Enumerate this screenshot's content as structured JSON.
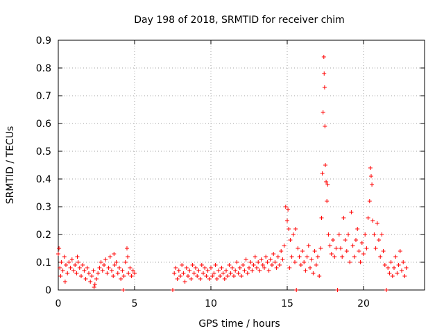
{
  "chart_data": {
    "type": "scatter",
    "title": "Day 198 of 2018, SRMTID for receiver chim",
    "xlabel": "GPS time / hours",
    "ylabel": "SRMTID / TECUs",
    "xlim": [
      0,
      24
    ],
    "ylim": [
      0,
      0.9
    ],
    "x_ticks": [
      0,
      5,
      10,
      15,
      20
    ],
    "x_tick_labels": [
      "0",
      "5",
      "10",
      "15",
      "20"
    ],
    "y_ticks": [
      0,
      0.1,
      0.2,
      0.3,
      0.4,
      0.5,
      0.6,
      0.7,
      0.8,
      0.9
    ],
    "y_tick_labels": [
      "0",
      "0.1",
      "0.2",
      "0.3",
      "0.4",
      "0.5",
      "0.6",
      "0.7",
      "0.8",
      "0.9"
    ],
    "grid": true,
    "marker": "+",
    "series_color": "#ff0000",
    "series": [
      {
        "name": "SRMTID",
        "points": [
          [
            0.0,
            0.13
          ],
          [
            0.1,
            0.08
          ],
          [
            0.2,
            0.1
          ],
          [
            0.3,
            0.07
          ],
          [
            0.4,
            0.12
          ],
          [
            0.5,
            0.09
          ],
          [
            0.6,
            0.06
          ],
          [
            0.7,
            0.1
          ],
          [
            0.8,
            0.08
          ],
          [
            0.9,
            0.11
          ],
          [
            1.0,
            0.07
          ],
          [
            1.1,
            0.09
          ],
          [
            1.2,
            0.06
          ],
          [
            1.3,
            0.1
          ],
          [
            1.4,
            0.08
          ],
          [
            1.5,
            0.05
          ],
          [
            1.6,
            0.09
          ],
          [
            1.7,
            0.07
          ],
          [
            1.8,
            0.04
          ],
          [
            1.9,
            0.08
          ],
          [
            2.0,
            0.06
          ],
          [
            2.1,
            0.03
          ],
          [
            2.2,
            0.05
          ],
          [
            2.3,
            0.07
          ],
          [
            2.4,
            0.02
          ],
          [
            2.5,
            0.04
          ],
          [
            2.6,
            0.06
          ],
          [
            2.7,
            0.08
          ],
          [
            2.8,
            0.1
          ],
          [
            2.9,
            0.07
          ],
          [
            3.0,
            0.09
          ],
          [
            3.1,
            0.11
          ],
          [
            3.2,
            0.06
          ],
          [
            3.3,
            0.08
          ],
          [
            3.4,
            0.12
          ],
          [
            3.5,
            0.07
          ],
          [
            3.6,
            0.05
          ],
          [
            3.7,
            0.09
          ],
          [
            3.8,
            0.1
          ],
          [
            3.9,
            0.06
          ],
          [
            4.0,
            0.08
          ],
          [
            4.1,
            0.04
          ],
          [
            4.2,
            0.07
          ],
          [
            4.3,
            0.05
          ],
          [
            4.4,
            0.1
          ],
          [
            4.5,
            0.15
          ],
          [
            4.6,
            0.06
          ],
          [
            4.7,
            0.08
          ],
          [
            4.8,
            0.05
          ],
          [
            4.9,
            0.07
          ],
          [
            5.0,
            0.06
          ],
          [
            0.05,
            0.15
          ],
          [
            0.15,
            0.05
          ],
          [
            0.45,
            0.03
          ],
          [
            1.25,
            0.12
          ],
          [
            2.35,
            0.01
          ],
          [
            3.65,
            0.13
          ],
          [
            4.25,
            0.0
          ],
          [
            4.55,
            0.12
          ],
          [
            7.5,
            0.0
          ],
          [
            7.6,
            0.06
          ],
          [
            7.7,
            0.08
          ],
          [
            7.8,
            0.04
          ],
          [
            7.9,
            0.07
          ],
          [
            8.0,
            0.05
          ],
          [
            8.1,
            0.09
          ],
          [
            8.2,
            0.06
          ],
          [
            8.3,
            0.03
          ],
          [
            8.4,
            0.08
          ],
          [
            8.5,
            0.05
          ],
          [
            8.6,
            0.07
          ],
          [
            8.7,
            0.04
          ],
          [
            8.8,
            0.09
          ],
          [
            8.9,
            0.06
          ],
          [
            9.0,
            0.08
          ],
          [
            9.1,
            0.05
          ],
          [
            9.2,
            0.07
          ],
          [
            9.3,
            0.04
          ],
          [
            9.4,
            0.09
          ],
          [
            9.5,
            0.06
          ],
          [
            9.6,
            0.08
          ],
          [
            9.7,
            0.05
          ],
          [
            9.8,
            0.07
          ],
          [
            9.9,
            0.04
          ],
          [
            10.0,
            0.08
          ],
          [
            10.1,
            0.05
          ],
          [
            10.2,
            0.06
          ],
          [
            10.3,
            0.09
          ],
          [
            10.4,
            0.04
          ],
          [
            10.5,
            0.07
          ],
          [
            10.6,
            0.05
          ],
          [
            10.7,
            0.08
          ],
          [
            10.8,
            0.06
          ],
          [
            10.9,
            0.04
          ],
          [
            11.0,
            0.07
          ],
          [
            11.1,
            0.05
          ],
          [
            11.2,
            0.09
          ],
          [
            11.3,
            0.06
          ],
          [
            11.4,
            0.08
          ],
          [
            11.5,
            0.05
          ],
          [
            11.6,
            0.07
          ],
          [
            11.7,
            0.1
          ],
          [
            11.8,
            0.06
          ],
          [
            11.9,
            0.08
          ],
          [
            12.0,
            0.05
          ],
          [
            12.1,
            0.09
          ],
          [
            12.2,
            0.07
          ],
          [
            12.3,
            0.11
          ],
          [
            12.4,
            0.06
          ],
          [
            12.5,
            0.08
          ],
          [
            12.6,
            0.1
          ],
          [
            12.7,
            0.07
          ],
          [
            12.8,
            0.09
          ],
          [
            12.9,
            0.12
          ],
          [
            13.0,
            0.08
          ],
          [
            13.1,
            0.1
          ],
          [
            13.2,
            0.07
          ],
          [
            13.3,
            0.11
          ],
          [
            13.4,
            0.09
          ],
          [
            13.5,
            0.08
          ],
          [
            13.6,
            0.12
          ],
          [
            13.7,
            0.1
          ],
          [
            13.8,
            0.07
          ],
          [
            13.9,
            0.11
          ],
          [
            14.0,
            0.09
          ],
          [
            14.1,
            0.13
          ],
          [
            14.2,
            0.1
          ],
          [
            14.3,
            0.08
          ],
          [
            14.4,
            0.12
          ],
          [
            14.5,
            0.09
          ],
          [
            14.6,
            0.14
          ],
          [
            14.7,
            0.11
          ],
          [
            14.8,
            0.16
          ],
          [
            14.9,
            0.3
          ],
          [
            15.0,
            0.25
          ],
          [
            15.05,
            0.29
          ],
          [
            15.1,
            0.22
          ],
          [
            15.15,
            0.08
          ],
          [
            15.2,
            0.18
          ],
          [
            15.3,
            0.12
          ],
          [
            15.4,
            0.2
          ],
          [
            15.5,
            0.1
          ],
          [
            15.55,
            0.22
          ],
          [
            15.6,
            0.0
          ],
          [
            15.7,
            0.15
          ],
          [
            15.8,
            0.12
          ],
          [
            15.9,
            0.09
          ],
          [
            16.0,
            0.14
          ],
          [
            16.1,
            0.1
          ],
          [
            16.2,
            0.07
          ],
          [
            16.3,
            0.12
          ],
          [
            16.4,
            0.16
          ],
          [
            16.5,
            0.08
          ],
          [
            16.6,
            0.11
          ],
          [
            16.7,
            0.06
          ],
          [
            16.8,
            0.14
          ],
          [
            16.9,
            0.09
          ],
          [
            17.0,
            0.12
          ],
          [
            17.1,
            0.05
          ],
          [
            17.2,
            0.15
          ],
          [
            17.25,
            0.26
          ],
          [
            17.3,
            0.42
          ],
          [
            17.35,
            0.64
          ],
          [
            17.4,
            0.84
          ],
          [
            17.42,
            0.78
          ],
          [
            17.45,
            0.73
          ],
          [
            17.47,
            0.59
          ],
          [
            17.5,
            0.45
          ],
          [
            17.55,
            0.39
          ],
          [
            17.6,
            0.32
          ],
          [
            17.65,
            0.38
          ],
          [
            17.7,
            0.2
          ],
          [
            17.8,
            0.16
          ],
          [
            17.9,
            0.13
          ],
          [
            18.0,
            0.18
          ],
          [
            18.1,
            0.12
          ],
          [
            18.2,
            0.15
          ],
          [
            18.3,
            0.0
          ],
          [
            18.4,
            0.2
          ],
          [
            18.5,
            0.15
          ],
          [
            18.6,
            0.12
          ],
          [
            18.7,
            0.26
          ],
          [
            18.8,
            0.18
          ],
          [
            18.9,
            0.14
          ],
          [
            19.0,
            0.2
          ],
          [
            19.1,
            0.1
          ],
          [
            19.2,
            0.28
          ],
          [
            19.3,
            0.16
          ],
          [
            19.4,
            0.12
          ],
          [
            19.5,
            0.18
          ],
          [
            19.6,
            0.22
          ],
          [
            19.7,
            0.14
          ],
          [
            19.8,
            0.1
          ],
          [
            19.9,
            0.17
          ],
          [
            20.0,
            0.13
          ],
          [
            20.1,
            0.2
          ],
          [
            20.2,
            0.15
          ],
          [
            20.3,
            0.26
          ],
          [
            20.4,
            0.32
          ],
          [
            20.45,
            0.44
          ],
          [
            20.5,
            0.41
          ],
          [
            20.55,
            0.38
          ],
          [
            20.6,
            0.25
          ],
          [
            20.7,
            0.2
          ],
          [
            20.8,
            0.15
          ],
          [
            20.9,
            0.24
          ],
          [
            21.0,
            0.18
          ],
          [
            21.1,
            0.12
          ],
          [
            21.2,
            0.2
          ],
          [
            21.3,
            0.14
          ],
          [
            21.4,
            0.09
          ],
          [
            21.5,
            0.0
          ],
          [
            21.6,
            0.08
          ],
          [
            21.7,
            0.06
          ],
          [
            21.8,
            0.1
          ],
          [
            21.9,
            0.05
          ],
          [
            22.0,
            0.08
          ],
          [
            22.1,
            0.12
          ],
          [
            22.2,
            0.06
          ],
          [
            22.3,
            0.09
          ],
          [
            22.4,
            0.14
          ],
          [
            22.5,
            0.07
          ],
          [
            22.6,
            0.1
          ],
          [
            22.7,
            0.05
          ],
          [
            22.8,
            0.08
          ]
        ]
      }
    ]
  }
}
